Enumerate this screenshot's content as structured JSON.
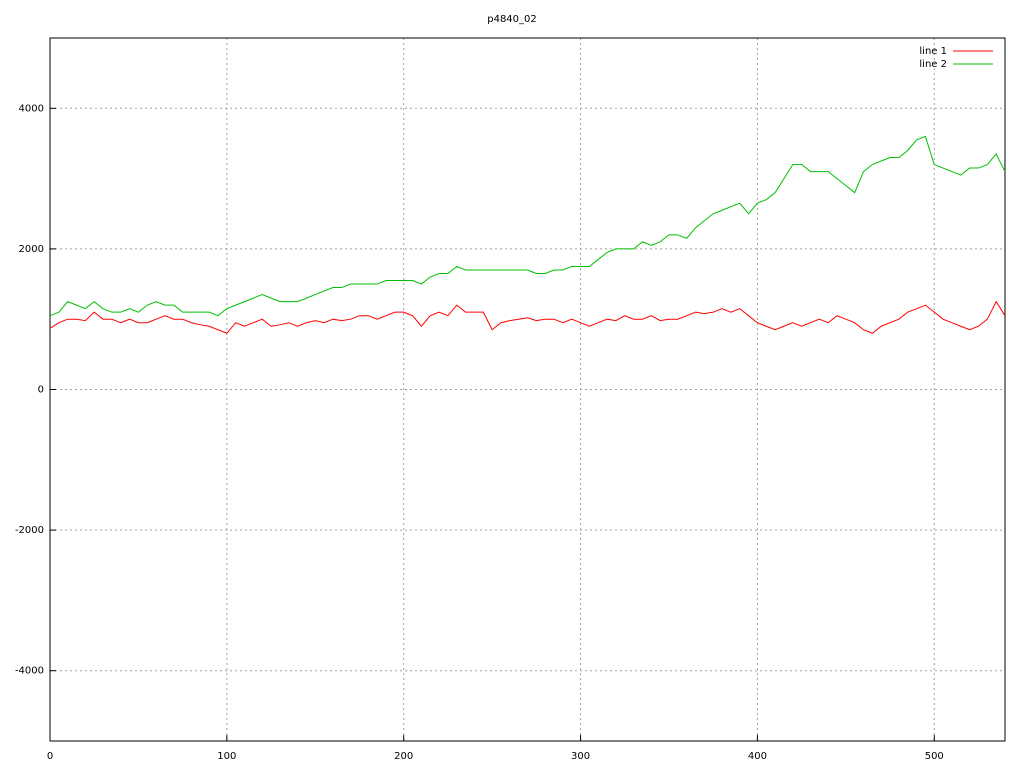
{
  "chart_data": {
    "type": "line",
    "title": "p4840_02",
    "x": [
      0,
      5,
      10,
      15,
      20,
      25,
      30,
      35,
      40,
      45,
      50,
      55,
      60,
      65,
      70,
      75,
      80,
      85,
      90,
      95,
      100,
      105,
      110,
      115,
      120,
      125,
      130,
      135,
      140,
      145,
      150,
      155,
      160,
      165,
      170,
      175,
      180,
      185,
      190,
      195,
      200,
      205,
      210,
      215,
      220,
      225,
      230,
      235,
      240,
      245,
      250,
      255,
      260,
      265,
      270,
      275,
      280,
      285,
      290,
      295,
      300,
      305,
      310,
      315,
      320,
      325,
      330,
      335,
      340,
      345,
      350,
      355,
      360,
      365,
      370,
      375,
      380,
      385,
      390,
      395,
      400,
      405,
      410,
      415,
      420,
      425,
      430,
      435,
      440,
      445,
      450,
      455,
      460,
      465,
      470,
      475,
      480,
      485,
      490,
      495,
      500,
      505,
      510,
      515,
      520,
      525,
      530,
      535,
      540
    ],
    "series": [
      {
        "name": "line 1",
        "color": "#ff0000",
        "values": [
          870,
          950,
          1000,
          1000,
          980,
          1100,
          1000,
          1000,
          950,
          1000,
          950,
          950,
          1000,
          1050,
          1000,
          1000,
          950,
          920,
          900,
          850,
          800,
          950,
          900,
          950,
          1000,
          900,
          920,
          950,
          900,
          950,
          980,
          950,
          1000,
          980,
          1000,
          1050,
          1050,
          1000,
          1050,
          1100,
          1100,
          1050,
          900,
          1050,
          1100,
          1050,
          1200,
          1100,
          1100,
          1100,
          850,
          950,
          980,
          1000,
          1020,
          980,
          1000,
          1000,
          950,
          1000,
          950,
          900,
          950,
          1000,
          980,
          1050,
          1000,
          1000,
          1050,
          980,
          1000,
          1000,
          1050,
          1100,
          1080,
          1100,
          1150,
          1100,
          1150,
          1050,
          950,
          900,
          850,
          900,
          950,
          900,
          950,
          1000,
          950,
          1050,
          1000,
          950,
          850,
          800,
          900,
          950,
          1000,
          1100,
          1150,
          1200,
          1100,
          1000,
          950,
          900,
          850,
          900,
          1000,
          1250,
          1050
        ]
      },
      {
        "name": "line 2",
        "color": "#00c000",
        "values": [
          1050,
          1100,
          1250,
          1200,
          1150,
          1250,
          1150,
          1100,
          1100,
          1150,
          1100,
          1200,
          1250,
          1200,
          1200,
          1100,
          1100,
          1100,
          1100,
          1050,
          1150,
          1200,
          1250,
          1300,
          1350,
          1300,
          1250,
          1250,
          1250,
          1300,
          1350,
          1400,
          1450,
          1450,
          1500,
          1500,
          1500,
          1500,
          1550,
          1550,
          1550,
          1550,
          1500,
          1600,
          1650,
          1650,
          1750,
          1700,
          1700,
          1700,
          1700,
          1700,
          1700,
          1700,
          1700,
          1650,
          1650,
          1700,
          1700,
          1750,
          1750,
          1750,
          1850,
          1950,
          2000,
          2000,
          2000,
          2100,
          2050,
          2100,
          2200,
          2200,
          2150,
          2300,
          2400,
          2500,
          2550,
          2600,
          2650,
          2500,
          2650,
          2700,
          2800,
          3000,
          3200,
          3200,
          3100,
          3100,
          3100,
          3000,
          2900,
          2800,
          3100,
          3200,
          3250,
          3300,
          3300,
          3400,
          3550,
          3600,
          3200,
          3150,
          3100,
          3050,
          3150,
          3150,
          3200,
          3350,
          3100
        ]
      }
    ],
    "xlim": [
      0,
      540
    ],
    "ylim": [
      -5000,
      5000
    ],
    "xticks": [
      0,
      100,
      200,
      300,
      400,
      500
    ],
    "yticks": [
      -4000,
      -2000,
      0,
      2000,
      4000
    ],
    "grid": true,
    "legend": "top-right"
  }
}
